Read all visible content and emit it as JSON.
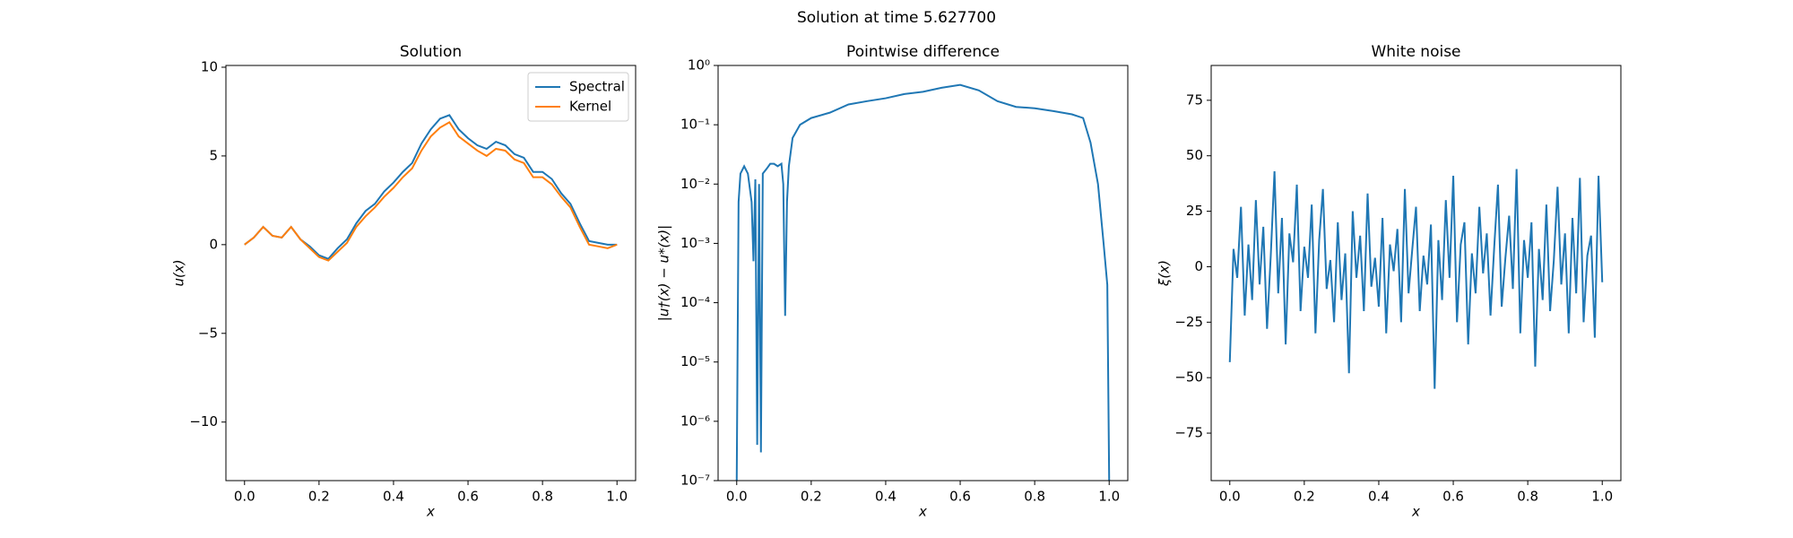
{
  "title": "Solution at time 5.627700",
  "chart_data": [
    {
      "type": "line",
      "title": "Solution",
      "xlabel": "x",
      "ylabel": "u(x)",
      "x": [
        0,
        0.025,
        0.05,
        0.075,
        0.1,
        0.125,
        0.15,
        0.175,
        0.2,
        0.225,
        0.25,
        0.275,
        0.3,
        0.325,
        0.35,
        0.375,
        0.4,
        0.425,
        0.45,
        0.475,
        0.5,
        0.525,
        0.55,
        0.575,
        0.6,
        0.625,
        0.65,
        0.675,
        0.7,
        0.725,
        0.75,
        0.775,
        0.8,
        0.825,
        0.85,
        0.875,
        0.9,
        0.925,
        0.95,
        0.975,
        1.0
      ],
      "series": [
        {
          "name": "Spectral",
          "color": "#1f77b4",
          "values": [
            0,
            0.4,
            1.0,
            0.5,
            0.4,
            1.0,
            0.3,
            -0.1,
            -0.6,
            -0.8,
            -0.2,
            0.3,
            1.2,
            1.9,
            2.3,
            3.0,
            3.5,
            4.1,
            4.6,
            5.7,
            6.5,
            7.1,
            7.3,
            6.5,
            6.0,
            5.6,
            5.4,
            5.8,
            5.6,
            5.1,
            4.9,
            4.1,
            4.1,
            3.7,
            2.9,
            2.3,
            1.2,
            0.2,
            0.1,
            0.0,
            0.0
          ]
        },
        {
          "name": "Kernel",
          "color": "#ff7f0e",
          "values": [
            0,
            0.4,
            1.0,
            0.5,
            0.4,
            1.0,
            0.3,
            -0.2,
            -0.7,
            -0.9,
            -0.4,
            0.1,
            1.0,
            1.6,
            2.1,
            2.7,
            3.2,
            3.8,
            4.3,
            5.3,
            6.1,
            6.6,
            6.9,
            6.1,
            5.7,
            5.3,
            5.0,
            5.4,
            5.3,
            4.8,
            4.6,
            3.8,
            3.8,
            3.4,
            2.7,
            2.1,
            1.0,
            0.0,
            -0.1,
            -0.2,
            0.0
          ]
        }
      ],
      "xlim": [
        -0.05,
        1.05
      ],
      "ylim": [
        -13.3,
        10.1
      ],
      "xticks": [
        {
          "value": 0,
          "label": "0.0"
        },
        0.2,
        0.4,
        0.6,
        0.8,
        {
          "value": 1,
          "label": "1.0"
        }
      ],
      "yticks": [
        {
          "value": -10,
          "label": "−10"
        },
        {
          "value": -5,
          "label": "−5"
        },
        0,
        5,
        10
      ],
      "legend": "upper right"
    },
    {
      "type": "line",
      "title": "Pointwise difference",
      "xlabel": "x",
      "ylabel": "|u†(x) − u*(x)|",
      "yscale": "log",
      "color": "#1f77b4",
      "x": [
        0,
        0.005,
        0.01,
        0.02,
        0.03,
        0.04,
        0.045,
        0.05,
        0.055,
        0.06,
        0.065,
        0.07,
        0.08,
        0.09,
        0.1,
        0.11,
        0.12,
        0.125,
        0.13,
        0.135,
        0.14,
        0.15,
        0.17,
        0.2,
        0.25,
        0.3,
        0.35,
        0.4,
        0.45,
        0.5,
        0.55,
        0.6,
        0.65,
        0.7,
        0.75,
        0.8,
        0.85,
        0.9,
        0.93,
        0.95,
        0.97,
        0.985,
        0.995,
        1.0
      ],
      "values": [
        1e-07,
        0.005,
        0.015,
        0.02,
        0.015,
        0.005,
        0.0005,
        0.012,
        4e-07,
        0.01,
        3e-07,
        0.015,
        0.018,
        0.022,
        0.022,
        0.02,
        0.022,
        0.01,
        6e-05,
        0.005,
        0.02,
        0.06,
        0.1,
        0.13,
        0.16,
        0.22,
        0.25,
        0.28,
        0.33,
        0.36,
        0.42,
        0.47,
        0.38,
        0.25,
        0.2,
        0.19,
        0.17,
        0.15,
        0.13,
        0.05,
        0.01,
        0.001,
        0.0002,
        1e-07
      ],
      "xlim": [
        -0.05,
        1.05
      ],
      "ylim": [
        1e-07,
        1
      ],
      "xticks": [
        {
          "value": 0,
          "label": "0.0"
        },
        0.2,
        0.4,
        0.6,
        0.8,
        {
          "value": 1,
          "label": "1.0"
        }
      ],
      "yticks": [
        {
          "value": 1e-07,
          "label": "10⁻⁷"
        },
        {
          "value": 1e-06,
          "label": "10⁻⁶"
        },
        {
          "value": 1e-05,
          "label": "10⁻⁵"
        },
        {
          "value": 0.0001,
          "label": "10⁻⁴"
        },
        {
          "value": 0.001,
          "label": "10⁻³"
        },
        {
          "value": 0.01,
          "label": "10⁻²"
        },
        {
          "value": 0.1,
          "label": "10⁻¹"
        },
        {
          "value": 1,
          "label": "10⁰"
        }
      ]
    },
    {
      "type": "line",
      "title": "White noise",
      "xlabel": "x",
      "ylabel": "ξ(x)",
      "color": "#1f77b4",
      "x": [
        0,
        0.01,
        0.02,
        0.03,
        0.04,
        0.05,
        0.06,
        0.07,
        0.08,
        0.09,
        0.1,
        0.11,
        0.12,
        0.13,
        0.14,
        0.15,
        0.16,
        0.17,
        0.18,
        0.19,
        0.2,
        0.21,
        0.22,
        0.23,
        0.24,
        0.25,
        0.26,
        0.27,
        0.28,
        0.29,
        0.3,
        0.31,
        0.32,
        0.33,
        0.34,
        0.35,
        0.36,
        0.37,
        0.38,
        0.39,
        0.4,
        0.41,
        0.42,
        0.43,
        0.44,
        0.45,
        0.46,
        0.47,
        0.48,
        0.49,
        0.5,
        0.51,
        0.52,
        0.53,
        0.54,
        0.55,
        0.56,
        0.57,
        0.58,
        0.59,
        0.6,
        0.61,
        0.62,
        0.63,
        0.64,
        0.65,
        0.66,
        0.67,
        0.68,
        0.69,
        0.7,
        0.71,
        0.72,
        0.73,
        0.74,
        0.75,
        0.76,
        0.77,
        0.78,
        0.79,
        0.8,
        0.81,
        0.82,
        0.83,
        0.84,
        0.85,
        0.86,
        0.87,
        0.88,
        0.89,
        0.9,
        0.91,
        0.92,
        0.93,
        0.94,
        0.95,
        0.96,
        0.97,
        0.98,
        0.99,
        1.0
      ],
      "values": [
        -43,
        8,
        -5,
        27,
        -22,
        10,
        -15,
        30,
        -8,
        18,
        -28,
        5,
        43,
        -12,
        22,
        -35,
        15,
        2,
        37,
        -20,
        9,
        -5,
        28,
        -30,
        12,
        35,
        -10,
        3,
        -25,
        20,
        -15,
        6,
        -48,
        25,
        -5,
        14,
        -20,
        33,
        -9,
        4,
        -18,
        22,
        -30,
        10,
        -2,
        17,
        -25,
        35,
        -12,
        8,
        27,
        -20,
        5,
        -8,
        19,
        -55,
        12,
        -15,
        30,
        -5,
        41,
        -25,
        10,
        20,
        -35,
        6,
        -12,
        27,
        -3,
        15,
        -22,
        9,
        37,
        -18,
        4,
        23,
        -10,
        44,
        -30,
        12,
        -5,
        20,
        -45,
        8,
        -15,
        28,
        -20,
        3,
        36,
        -8,
        15,
        -30,
        22,
        -12,
        40,
        -25,
        5,
        14,
        -32,
        41,
        -7
      ],
      "xlim": [
        -0.05,
        1.05
      ],
      "ylim": [
        -96.4,
        90.7
      ],
      "xticks": [
        {
          "value": 0,
          "label": "0.0"
        },
        0.2,
        0.4,
        0.6,
        0.8,
        {
          "value": 1,
          "label": "1.0"
        }
      ],
      "yticks": [
        {
          "value": -75,
          "label": "−75"
        },
        {
          "value": -50,
          "label": "−50"
        },
        {
          "value": -25,
          "label": "−25"
        },
        0,
        25,
        50,
        75
      ]
    }
  ]
}
